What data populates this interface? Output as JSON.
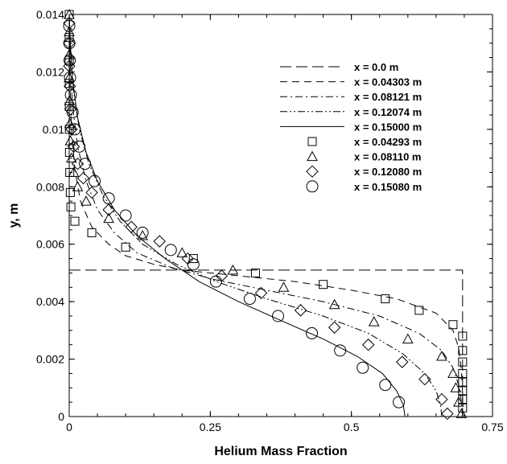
{
  "chart_data": {
    "type": "line",
    "xlabel": "Helium Mass Fraction",
    "ylabel": "y, m",
    "xlim": [
      0,
      0.75
    ],
    "ylim": [
      0,
      0.014
    ],
    "x_ticks": [
      {
        "value": 0,
        "label": "0"
      },
      {
        "value": 0.25,
        "label": "0.25"
      },
      {
        "value": 0.5,
        "label": "0.5"
      },
      {
        "value": 0.75,
        "label": "0.75"
      }
    ],
    "y_ticks": [
      {
        "value": 0,
        "label": "0"
      },
      {
        "value": 0.002,
        "label": "0.002"
      },
      {
        "value": 0.004,
        "label": "0.004"
      },
      {
        "value": 0.006,
        "label": "0.006"
      },
      {
        "value": 0.008,
        "label": "0.008"
      },
      {
        "value": 0.01,
        "label": "0.01"
      },
      {
        "value": 0.012,
        "label": "0.012"
      },
      {
        "value": 0.014,
        "label": "0.014"
      }
    ],
    "grid": false,
    "legend_position": "top-right",
    "series": [
      {
        "name": "x = 0.0 m",
        "kind": "line",
        "style": "long-dash",
        "points": [
          [
            0,
            0.0051
          ],
          [
            0.697,
            0.0051
          ],
          [
            0.697,
            0.0
          ]
        ]
      },
      {
        "name": "x = 0.04303 m",
        "kind": "line",
        "style": "dash",
        "points": [
          [
            0.697,
            0
          ],
          [
            0.697,
            0.0008
          ],
          [
            0.695,
            0.0016
          ],
          [
            0.69,
            0.0024
          ],
          [
            0.68,
            0.003
          ],
          [
            0.65,
            0.0036
          ],
          [
            0.58,
            0.0041
          ],
          [
            0.5,
            0.0044
          ],
          [
            0.4,
            0.0047
          ],
          [
            0.3,
            0.0049
          ],
          [
            0.2,
            0.0051
          ],
          [
            0.15,
            0.0053
          ],
          [
            0.1,
            0.0056
          ],
          [
            0.07,
            0.006
          ],
          [
            0.04,
            0.0066
          ],
          [
            0.02,
            0.0075
          ],
          [
            0.01,
            0.0086
          ],
          [
            0.004,
            0.01
          ],
          [
            0.0015,
            0.0115
          ],
          [
            0,
            0.014
          ]
        ]
      },
      {
        "name": "x = 0.08121 m",
        "kind": "line",
        "style": "dash-dot",
        "points": [
          [
            0.697,
            0
          ],
          [
            0.695,
            0.0005
          ],
          [
            0.69,
            0.0011
          ],
          [
            0.68,
            0.0017
          ],
          [
            0.66,
            0.0023
          ],
          [
            0.62,
            0.0029
          ],
          [
            0.55,
            0.0035
          ],
          [
            0.45,
            0.004
          ],
          [
            0.35,
            0.0044
          ],
          [
            0.25,
            0.0048
          ],
          [
            0.18,
            0.0052
          ],
          [
            0.12,
            0.0057
          ],
          [
            0.08,
            0.0064
          ],
          [
            0.05,
            0.0072
          ],
          [
            0.03,
            0.0082
          ],
          [
            0.015,
            0.0094
          ],
          [
            0.006,
            0.0108
          ],
          [
            0.002,
            0.0122
          ],
          [
            0,
            0.014
          ]
        ]
      },
      {
        "name": "x = 0.12074 m",
        "kind": "line",
        "style": "dash-dot-dot",
        "points": [
          [
            0.66,
            0
          ],
          [
            0.658,
            0.0004
          ],
          [
            0.65,
            0.0009
          ],
          [
            0.63,
            0.0015
          ],
          [
            0.59,
            0.0022
          ],
          [
            0.53,
            0.0029
          ],
          [
            0.45,
            0.0035
          ],
          [
            0.35,
            0.0041
          ],
          [
            0.26,
            0.0047
          ],
          [
            0.19,
            0.0053
          ],
          [
            0.13,
            0.006
          ],
          [
            0.09,
            0.0068
          ],
          [
            0.06,
            0.0077
          ],
          [
            0.035,
            0.0088
          ],
          [
            0.018,
            0.01
          ],
          [
            0.008,
            0.0113
          ],
          [
            0.002,
            0.0128
          ],
          [
            0,
            0.014
          ]
        ]
      },
      {
        "name": "x = 0.15000 m",
        "kind": "line",
        "style": "solid",
        "points": [
          [
            0.595,
            0
          ],
          [
            0.592,
            0.0004
          ],
          [
            0.58,
            0.0009
          ],
          [
            0.555,
            0.0015
          ],
          [
            0.51,
            0.0021
          ],
          [
            0.45,
            0.0027
          ],
          [
            0.38,
            0.0033
          ],
          [
            0.3,
            0.004
          ],
          [
            0.23,
            0.0047
          ],
          [
            0.17,
            0.0055
          ],
          [
            0.12,
            0.0063
          ],
          [
            0.08,
            0.0072
          ],
          [
            0.05,
            0.0082
          ],
          [
            0.03,
            0.0092
          ],
          [
            0.015,
            0.0104
          ],
          [
            0.006,
            0.0117
          ],
          [
            0.002,
            0.013
          ],
          [
            0,
            0.014
          ]
        ]
      },
      {
        "name": "x = 0.04293 m",
        "kind": "markers",
        "marker": "square",
        "points": [
          [
            0.697,
            0.0003
          ],
          [
            0.697,
            0.0006
          ],
          [
            0.697,
            0.0009
          ],
          [
            0.697,
            0.0012
          ],
          [
            0.697,
            0.0015
          ],
          [
            0.697,
            0.0019
          ],
          [
            0.697,
            0.0023
          ],
          [
            0.697,
            0.0028
          ],
          [
            0.68,
            0.0032
          ],
          [
            0.62,
            0.0037
          ],
          [
            0.56,
            0.0041
          ],
          [
            0.45,
            0.0046
          ],
          [
            0.33,
            0.005
          ],
          [
            0.22,
            0.0055
          ],
          [
            0.1,
            0.0059
          ],
          [
            0.04,
            0.0064
          ],
          [
            0.01,
            0.0068
          ],
          [
            0.003,
            0.0073
          ],
          [
            0.002,
            0.0078
          ],
          [
            0.001,
            0.0085
          ],
          [
            0.0005,
            0.0092
          ],
          [
            0.0003,
            0.01
          ],
          [
            0.0002,
            0.0108
          ],
          [
            0.0001,
            0.0116
          ],
          [
            0,
            0.0124
          ],
          [
            0,
            0.0132
          ],
          [
            0,
            0.014
          ]
        ]
      },
      {
        "name": "x = 0.08110 m",
        "kind": "markers",
        "marker": "triangle",
        "points": [
          [
            0.695,
            0.0001
          ],
          [
            0.69,
            0.0005
          ],
          [
            0.685,
            0.001
          ],
          [
            0.68,
            0.0015
          ],
          [
            0.66,
            0.0021
          ],
          [
            0.6,
            0.0027
          ],
          [
            0.54,
            0.0033
          ],
          [
            0.47,
            0.0039
          ],
          [
            0.38,
            0.0045
          ],
          [
            0.29,
            0.0051
          ],
          [
            0.2,
            0.0057
          ],
          [
            0.13,
            0.0063
          ],
          [
            0.07,
            0.0069
          ],
          [
            0.03,
            0.0075
          ],
          [
            0.015,
            0.008
          ],
          [
            0.008,
            0.0085
          ],
          [
            0.004,
            0.009
          ],
          [
            0.002,
            0.0096
          ],
          [
            0.001,
            0.0102
          ],
          [
            0.0005,
            0.011
          ],
          [
            0,
            0.0118
          ],
          [
            0,
            0.0126
          ],
          [
            0,
            0.0134
          ],
          [
            0,
            0.014
          ]
        ]
      },
      {
        "name": "x = 0.12080 m",
        "kind": "markers",
        "marker": "diamond",
        "points": [
          [
            0.67,
            0.0001
          ],
          [
            0.66,
            0.0006
          ],
          [
            0.63,
            0.0013
          ],
          [
            0.59,
            0.0019
          ],
          [
            0.53,
            0.0025
          ],
          [
            0.47,
            0.0031
          ],
          [
            0.41,
            0.0037
          ],
          [
            0.34,
            0.0043
          ],
          [
            0.27,
            0.0049
          ],
          [
            0.21,
            0.0055
          ],
          [
            0.16,
            0.0061
          ],
          [
            0.11,
            0.0066
          ],
          [
            0.07,
            0.0072
          ],
          [
            0.04,
            0.0078
          ],
          [
            0.025,
            0.0083
          ],
          [
            0.015,
            0.0088
          ],
          [
            0.008,
            0.0094
          ],
          [
            0.004,
            0.01
          ],
          [
            0.002,
            0.0107
          ],
          [
            0.001,
            0.0115
          ],
          [
            0,
            0.0122
          ],
          [
            0,
            0.013
          ],
          [
            0,
            0.0137
          ]
        ]
      },
      {
        "name": "x = 0.15080 m",
        "kind": "markers",
        "marker": "circle",
        "points": [
          [
            0.584,
            0.0005
          ],
          [
            0.56,
            0.0011
          ],
          [
            0.52,
            0.0017
          ],
          [
            0.48,
            0.0023
          ],
          [
            0.43,
            0.0029
          ],
          [
            0.37,
            0.0035
          ],
          [
            0.32,
            0.0041
          ],
          [
            0.26,
            0.0047
          ],
          [
            0.22,
            0.0053
          ],
          [
            0.18,
            0.0058
          ],
          [
            0.13,
            0.0064
          ],
          [
            0.1,
            0.007
          ],
          [
            0.07,
            0.0076
          ],
          [
            0.045,
            0.0082
          ],
          [
            0.028,
            0.0088
          ],
          [
            0.018,
            0.0094
          ],
          [
            0.01,
            0.01
          ],
          [
            0.006,
            0.0106
          ],
          [
            0.003,
            0.0112
          ],
          [
            0.0015,
            0.0118
          ],
          [
            0.0008,
            0.0124
          ],
          [
            0.0003,
            0.013
          ],
          [
            0,
            0.0136
          ]
        ]
      }
    ]
  }
}
